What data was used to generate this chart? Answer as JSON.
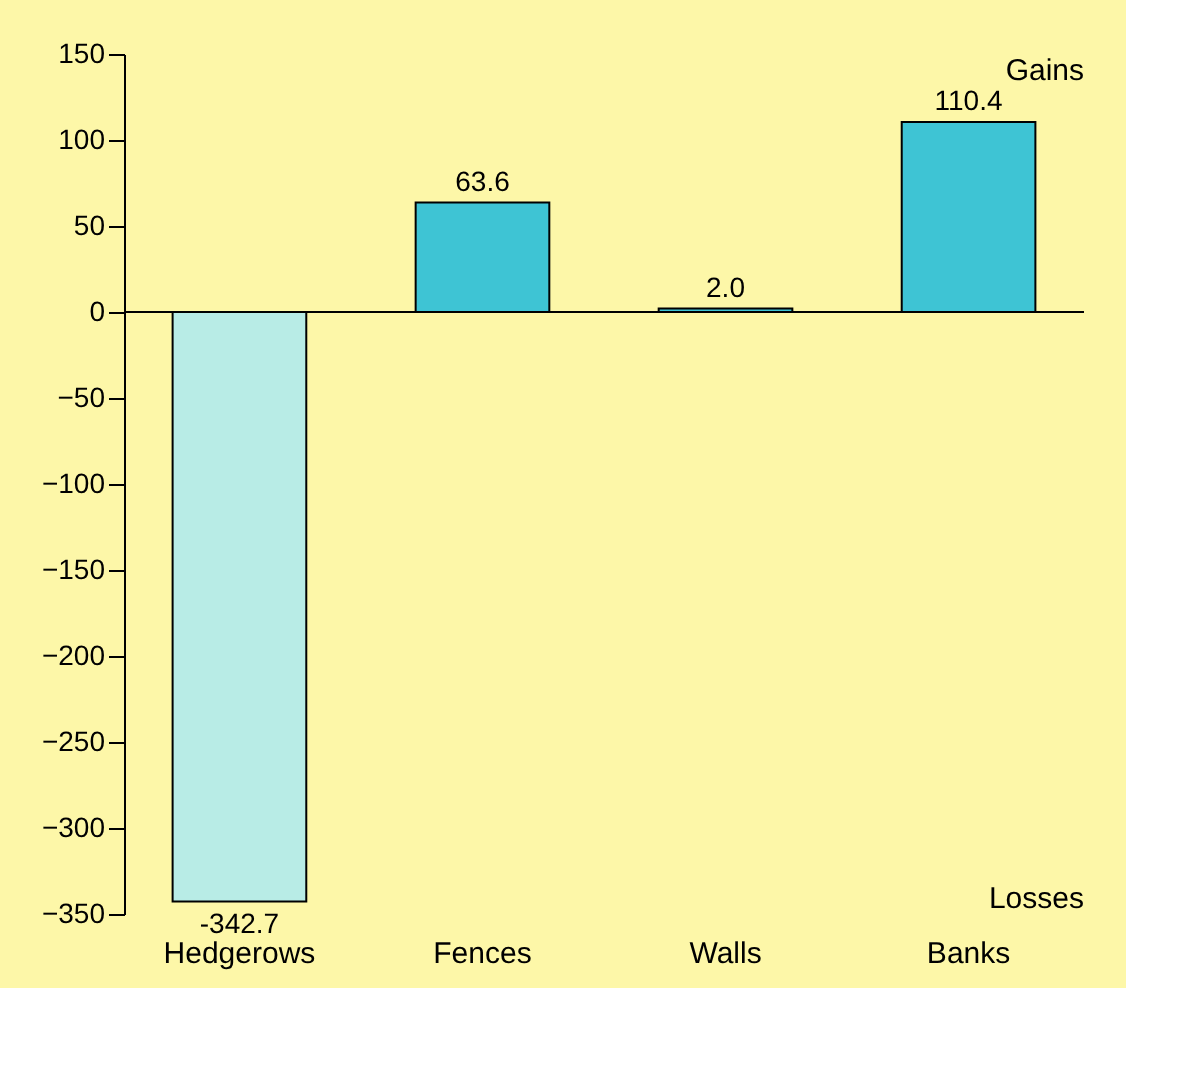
{
  "chart_data": {
    "type": "bar",
    "categories": [
      "Hedgerows",
      "Fences",
      "Walls",
      "Banks"
    ],
    "values": [
      -342.7,
      63.6,
      2.0,
      110.4
    ],
    "value_labels": [
      "-342.7",
      "63.6",
      "2.0",
      "110.4"
    ],
    "colors": [
      "#b8ece6",
      "#3ec4d4",
      "#3ec4d4",
      "#3ec4d4"
    ],
    "ylim": [
      -350,
      150
    ],
    "yticks": [
      -350,
      -300,
      -250,
      -200,
      -150,
      -100,
      -50,
      0,
      50,
      100,
      150
    ],
    "annotations": [
      "Gains",
      "Losses"
    ]
  }
}
